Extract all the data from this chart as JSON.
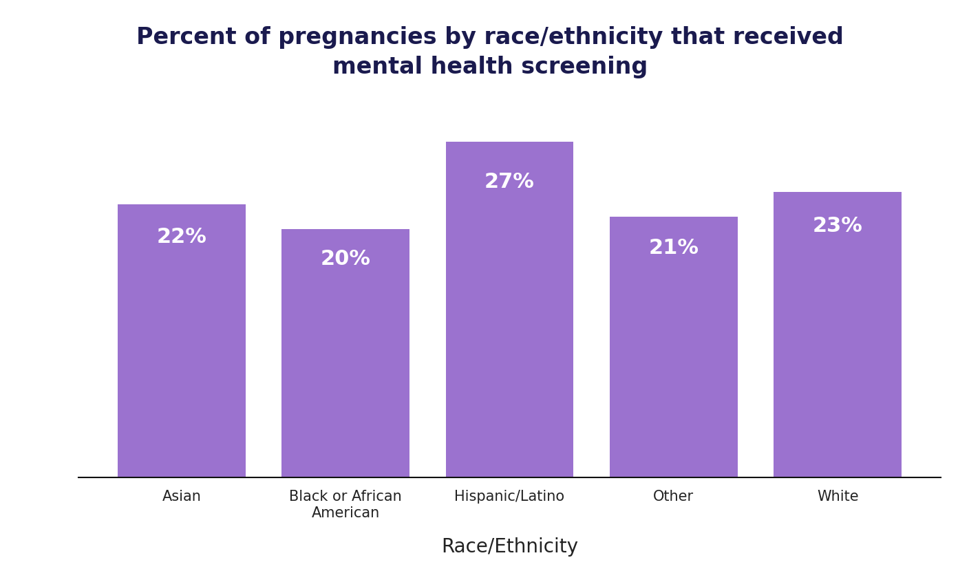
{
  "categories": [
    "Asian",
    "Black or African\nAmerican",
    "Hispanic/Latino",
    "Other",
    "White"
  ],
  "values": [
    22,
    20,
    27,
    21,
    23
  ],
  "labels": [
    "22%",
    "20%",
    "27%",
    "21%",
    "23%"
  ],
  "bar_color": "#9b72cf",
  "title_line1": "Percent of pregnancies by race/ethnicity that received",
  "title_line2": "mental health screening",
  "title_color": "#1a1a4e",
  "xlabel": "Race/Ethnicity",
  "xlabel_fontsize": 20,
  "title_fontsize": 24,
  "tick_fontsize": 15,
  "bar_label_fontsize": 22,
  "bar_label_color": "#ffffff",
  "background_color": "#ffffff",
  "ylim": [
    0,
    30
  ],
  "bar_width": 0.78
}
